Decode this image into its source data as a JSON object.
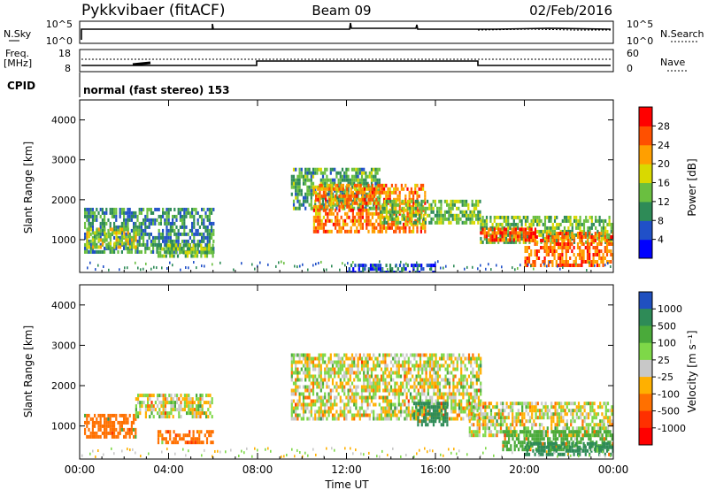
{
  "header": {
    "station": "Pykkvibaer (fitACF)",
    "beam": "Beam 09",
    "date": "02/Feb/2016"
  },
  "sky_panel": {
    "left_label": "N.Sky",
    "right_label": "N.Search",
    "left_ticks": [
      "10^5",
      "10^0"
    ],
    "right_ticks": [
      "10^5",
      "10^0"
    ]
  },
  "freq_panel": {
    "left_label_1": "Freq.",
    "left_label_2": "[MHz]",
    "right_label": "Nave",
    "left_ticks": [
      "18",
      "8"
    ],
    "right_ticks": [
      "60",
      "0"
    ]
  },
  "cpid": {
    "label": "CPID",
    "text": "normal (fast stereo) 153"
  },
  "chart_data": [
    {
      "type": "heatmap",
      "name": "power",
      "xlabel": "",
      "ylabel": "Slant Range [km]",
      "x_ticks": [
        "00:00",
        "04:00",
        "08:00",
        "12:00",
        "16:00",
        "20:00",
        "00:00"
      ],
      "xlim_hours": [
        0,
        24
      ],
      "ylim_km": [
        180,
        4500
      ],
      "y_ticks": [
        1000,
        2000,
        3000,
        4000
      ],
      "colorbar_label": "Power [dB]",
      "colorbar_ticks": [
        "4",
        "8",
        "12",
        "16",
        "20",
        "24",
        "28"
      ],
      "colorbar_colors": [
        "#0000ff",
        "#2050c8",
        "#2e8b57",
        "#6abf40",
        "#d9d900",
        "#ff9f00",
        "#ff5000",
        "#ff0000"
      ],
      "regions": [
        {
          "t": [
            0.2,
            6.0
          ],
          "r": [
            700,
            1800
          ],
          "level": 10
        },
        {
          "t": [
            0.3,
            2.5
          ],
          "r": [
            800,
            1300
          ],
          "level": 17
        },
        {
          "t": [
            3.5,
            6.0
          ],
          "r": [
            600,
            900
          ],
          "level": 14
        },
        {
          "t": [
            9.5,
            13.5
          ],
          "r": [
            1800,
            2800
          ],
          "level": 12
        },
        {
          "t": [
            10.5,
            15.5
          ],
          "r": [
            1200,
            2400
          ],
          "level": 24
        },
        {
          "t": [
            13.5,
            18.0
          ],
          "r": [
            1400,
            2000
          ],
          "level": 14
        },
        {
          "t": [
            18.0,
            24.0
          ],
          "r": [
            900,
            1600
          ],
          "level": 14
        },
        {
          "t": [
            18.0,
            20.5
          ],
          "r": [
            1000,
            1300
          ],
          "level": 26
        },
        {
          "t": [
            20.0,
            24.0
          ],
          "r": [
            400,
            1200
          ],
          "level": 25
        },
        {
          "t": [
            12.0,
            16.0
          ],
          "r": [
            200,
            400
          ],
          "level": 6
        }
      ]
    },
    {
      "type": "heatmap",
      "name": "velocity",
      "xlabel": "Time UT",
      "ylabel": "Slant Range [km]",
      "x_ticks": [
        "00:00",
        "04:00",
        "08:00",
        "12:00",
        "16:00",
        "20:00",
        "00:00"
      ],
      "xlim_hours": [
        0,
        24
      ],
      "ylim_km": [
        180,
        4500
      ],
      "y_ticks": [
        1000,
        2000,
        3000,
        4000
      ],
      "colorbar_label": "Velocity [m s⁻¹]",
      "colorbar_ticks": [
        "1000",
        "500",
        "100",
        "25",
        "-25",
        "-100",
        "-500",
        "-1000"
      ],
      "colorbar_colors": [
        "#2050c0",
        "#2e8b57",
        "#4aaa3a",
        "#7ed848",
        "#c8c8c8",
        "#ffb000",
        "#ff7000",
        "#ff3000",
        "#ff0000"
      ],
      "regions": [
        {
          "t": [
            0.2,
            2.5
          ],
          "r": [
            700,
            1300
          ],
          "vel": -300
        },
        {
          "t": [
            2.5,
            6.0
          ],
          "r": [
            1200,
            1800
          ],
          "vel": 0
        },
        {
          "t": [
            3.5,
            6.0
          ],
          "r": [
            600,
            900
          ],
          "vel": -400
        },
        {
          "t": [
            9.5,
            18.0
          ],
          "r": [
            1200,
            2800
          ],
          "vel": 0
        },
        {
          "t": [
            15.0,
            16.5
          ],
          "r": [
            1000,
            1600
          ],
          "vel": 800
        },
        {
          "t": [
            17.5,
            24.0
          ],
          "r": [
            800,
            1600
          ],
          "vel": 0
        },
        {
          "t": [
            19.0,
            24.0
          ],
          "r": [
            400,
            900
          ],
          "vel": 300
        },
        {
          "t": [
            20.0,
            24.0
          ],
          "r": [
            300,
            600
          ],
          "vel": 700
        }
      ]
    }
  ]
}
